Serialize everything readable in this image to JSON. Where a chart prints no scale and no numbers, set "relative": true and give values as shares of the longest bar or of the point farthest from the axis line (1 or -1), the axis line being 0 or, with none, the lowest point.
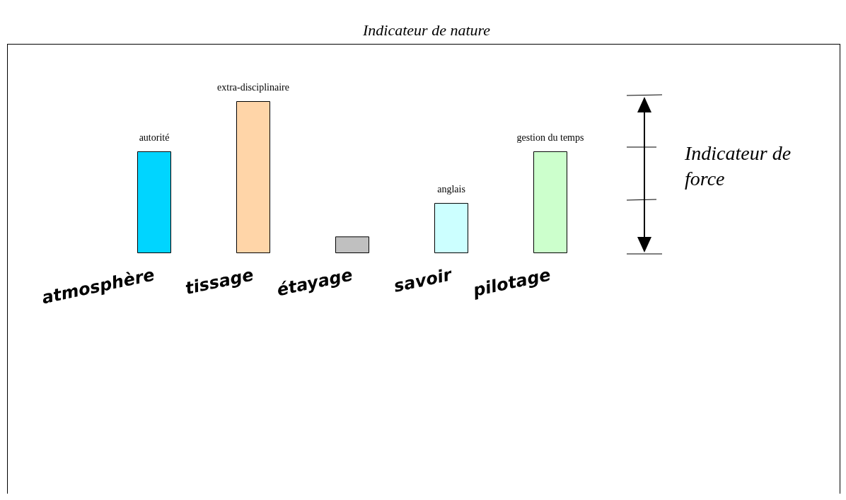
{
  "chart_data": {
    "type": "bar",
    "title": "Indicateur de nature",
    "ylabel": "Indicateur de force",
    "relative": true,
    "categories": [
      "atmosphère",
      "tissage",
      "étayage",
      "savoir",
      "pilotage"
    ],
    "values": [
      0.67,
      1,
      0.11,
      0.33,
      0.67
    ],
    "colors": [
      "#00d5ff",
      "#ffd5a8",
      "#c0c0c0",
      "#ccffff",
      "#ccffcc"
    ],
    "annotations": [
      {
        "text": "autorité",
        "x": "atmosphère",
        "y": 0.67
      },
      {
        "text": "extra-disciplinaire",
        "x": "tissage",
        "y": 1
      },
      {
        "text": "anglais",
        "x": "savoir",
        "y": 0.33
      },
      {
        "text": "gestion du temps",
        "x": "pilotage",
        "y": 0.67
      }
    ],
    "grid": false
  }
}
